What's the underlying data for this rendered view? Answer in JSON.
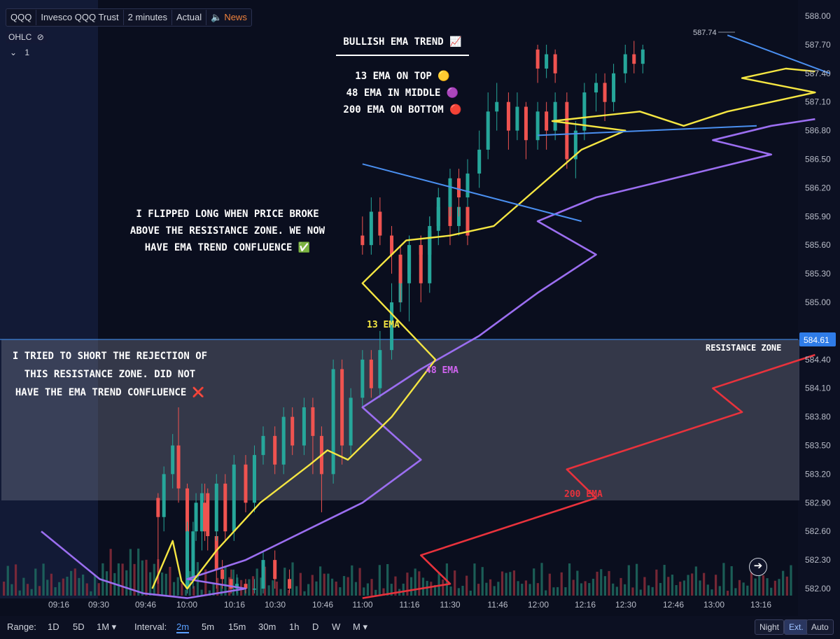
{
  "toolbar": {
    "symbol": "QQQ",
    "name": "Invesco QQQ Trust",
    "interval": "2 minutes",
    "mode": "Actual",
    "news": "News"
  },
  "legend": {
    "ohlc": "OHLC",
    "collapse": "1"
  },
  "price_axis": {
    "ticks": [
      "588.00",
      "587.70",
      "587.40",
      "587.10",
      "586.80",
      "586.50",
      "586.20",
      "585.90",
      "585.60",
      "585.30",
      "585.00",
      "584.70",
      "584.40",
      "584.10",
      "583.80",
      "583.50",
      "583.20",
      "582.90",
      "582.60",
      "582.30",
      "582.00"
    ],
    "current_price": "584.61",
    "high_marker": "587.74"
  },
  "time_axis": {
    "ticks": [
      "09:16",
      "09:30",
      "09:46",
      "10:00",
      "10:16",
      "10:30",
      "10:46",
      "11:00",
      "11:16",
      "11:30",
      "11:46",
      "12:00",
      "12:16",
      "12:30",
      "12:46",
      "13:00",
      "13:16"
    ]
  },
  "annotations": {
    "title": "BULLISH EMA TREND 📈",
    "line1": "13 EMA ON TOP 🟡",
    "line2": "48 EMA IN MIDDLE 🟣",
    "line3": "200 EMA ON BOTTOM 🔴",
    "long_note": [
      "I FLIPPED LONG WHEN PRICE BROKE",
      "ABOVE THE RESISTANCE ZONE. WE NOW",
      "HAVE EMA TREND CONFLUENCE ✅"
    ],
    "short_note": [
      "I TRIED TO SHORT THE REJECTION OF",
      "THIS RESISTANCE ZONE. DID NOT",
      "HAVE THE EMA TREND CONFLUENCE ❌"
    ],
    "ema13": "13 EMA",
    "ema48": "48 EMA",
    "ema200": "200 EMA",
    "zone": "RESISTANCE ZONE"
  },
  "bottom_bar": {
    "range_label": "Range:",
    "ranges": [
      "1D",
      "5D",
      "1M ▾"
    ],
    "interval_label": "Interval:",
    "intervals": [
      "2m",
      "5m",
      "15m",
      "30m",
      "1h",
      "D",
      "W",
      "M ▾"
    ],
    "night": "Night",
    "ext": "Ext.",
    "auto": "Auto"
  },
  "colors": {
    "up": "#26a69a",
    "down": "#ef5350",
    "ema13": "#f5e642",
    "ema48": "#9b6ef0",
    "ema200": "#e8323c",
    "trend_line": "#4a8ff0"
  },
  "chart_data": {
    "type": "candlestick",
    "ylim": [
      582.0,
      588.0
    ],
    "xlim": [
      "09:10",
      "13:28"
    ],
    "bar_interval_minutes": 2,
    "resistance_zone": [
      582.93,
      584.61
    ],
    "ema13": [
      [
        9.48,
        582.0
      ],
      [
        9.55,
        582.5
      ],
      [
        9.58,
        582.08
      ],
      [
        10.0,
        582.0
      ],
      [
        10.1,
        582.4
      ],
      [
        10.25,
        582.9
      ],
      [
        10.42,
        583.3
      ],
      [
        10.48,
        583.45
      ],
      [
        10.55,
        583.35
      ],
      [
        10.7,
        583.8
      ],
      [
        10.85,
        584.4
      ],
      [
        11.0,
        585.2
      ],
      [
        11.15,
        585.65
      ],
      [
        11.3,
        585.7
      ],
      [
        11.45,
        585.8
      ],
      [
        11.6,
        586.2
      ],
      [
        11.75,
        586.6
      ],
      [
        11.9,
        586.8
      ],
      [
        12.05,
        586.9
      ],
      [
        12.2,
        586.95
      ],
      [
        12.35,
        587.0
      ],
      [
        12.5,
        586.85
      ],
      [
        12.65,
        587.0
      ],
      [
        12.8,
        587.1
      ],
      [
        12.95,
        587.2
      ],
      [
        13.1,
        587.35
      ],
      [
        13.25,
        587.45
      ],
      [
        13.35,
        587.42
      ]
    ],
    "ema48": [
      [
        9.1,
        582.6
      ],
      [
        9.3,
        582.1
      ],
      [
        9.45,
        581.95
      ],
      [
        9.6,
        581.9
      ],
      [
        9.8,
        582.0
      ],
      [
        10.0,
        582.1
      ],
      [
        10.2,
        582.3
      ],
      [
        10.4,
        582.6
      ],
      [
        10.6,
        582.9
      ],
      [
        10.8,
        583.35
      ],
      [
        11.0,
        583.9
      ],
      [
        11.2,
        584.3
      ],
      [
        11.4,
        584.65
      ],
      [
        11.6,
        585.1
      ],
      [
        11.8,
        585.5
      ],
      [
        12.0,
        585.85
      ],
      [
        12.2,
        586.1
      ],
      [
        12.4,
        586.25
      ],
      [
        12.6,
        586.4
      ],
      [
        12.8,
        586.55
      ],
      [
        13.0,
        586.7
      ],
      [
        13.2,
        586.85
      ],
      [
        13.35,
        586.92
      ]
    ],
    "ema200": [
      [
        10.6,
        581.9
      ],
      [
        10.9,
        582.05
      ],
      [
        11.2,
        582.35
      ],
      [
        11.5,
        582.65
      ],
      [
        11.8,
        582.95
      ],
      [
        12.1,
        583.25
      ],
      [
        12.4,
        583.55
      ],
      [
        12.7,
        583.85
      ],
      [
        13.0,
        584.1
      ],
      [
        13.2,
        584.3
      ],
      [
        13.35,
        584.45
      ]
    ],
    "trend_lines": [
      [
        [
          11.0,
          586.45
        ],
        [
          11.75,
          585.85
        ]
      ],
      [
        [
          12.0,
          586.75
        ],
        [
          12.75,
          586.85
        ]
      ],
      [
        [
          13.05,
          587.8
        ],
        [
          13.4,
          587.4
        ]
      ]
    ],
    "candles": [
      [
        9.5,
        582.95,
        582.75,
        583.0,
        582.05
      ],
      [
        9.52,
        582.75,
        583.2,
        583.28,
        582.6
      ],
      [
        9.55,
        583.2,
        583.5,
        583.62,
        583.05
      ],
      [
        9.57,
        583.5,
        583.05,
        583.9,
        582.9
      ],
      [
        9.6,
        583.05,
        582.0,
        583.1,
        581.95
      ],
      [
        9.62,
        582.1,
        582.6,
        582.7,
        582.0
      ],
      [
        9.65,
        582.6,
        583.0,
        583.1,
        582.4
      ],
      [
        9.67,
        583.0,
        582.55,
        583.05,
        582.4
      ],
      [
        9.7,
        582.55,
        582.2,
        582.6,
        582.0
      ],
      [
        9.72,
        582.2,
        582.1,
        582.3,
        582.0
      ],
      [
        9.75,
        582.1,
        582.0,
        582.2,
        581.95
      ],
      [
        9.77,
        582.0,
        582.05,
        582.15,
        581.95
      ],
      [
        9.8,
        582.05,
        582.0,
        582.1,
        581.95
      ],
      [
        9.83,
        582.0,
        582.0,
        582.1,
        581.95
      ],
      [
        9.86,
        582.0,
        582.3,
        582.4,
        581.95
      ],
      [
        9.9,
        582.3,
        582.1,
        582.4,
        582.0
      ],
      [
        9.95,
        582.1,
        582.0,
        582.2,
        581.95
      ],
      [
        10.0,
        582.0,
        582.6,
        582.7,
        581.95
      ],
      [
        10.03,
        582.6,
        582.9,
        583.0,
        582.5
      ],
      [
        10.06,
        582.9,
        582.6,
        583.1,
        582.5
      ],
      [
        10.1,
        582.6,
        583.1,
        583.2,
        582.5
      ],
      [
        10.13,
        583.1,
        582.6,
        583.2,
        582.5
      ],
      [
        10.16,
        582.6,
        583.3,
        583.4,
        582.5
      ],
      [
        10.2,
        583.3,
        582.9,
        583.4,
        582.8
      ],
      [
        10.23,
        582.9,
        583.4,
        583.5,
        582.8
      ],
      [
        10.26,
        583.4,
        583.6,
        583.7,
        583.3
      ],
      [
        10.3,
        583.6,
        583.3,
        583.7,
        583.2
      ],
      [
        10.33,
        583.3,
        583.8,
        583.9,
        583.2
      ],
      [
        10.36,
        583.8,
        583.5,
        583.9,
        583.4
      ],
      [
        10.4,
        583.5,
        583.9,
        584.0,
        583.4
      ],
      [
        10.43,
        583.9,
        583.6,
        584.0,
        583.2
      ],
      [
        10.46,
        583.6,
        583.2,
        583.7,
        582.8
      ],
      [
        10.5,
        583.2,
        584.3,
        584.4,
        583.1
      ],
      [
        10.53,
        584.3,
        583.5,
        584.4,
        583.3
      ],
      [
        10.56,
        583.5,
        584.0,
        584.1,
        583.4
      ],
      [
        10.6,
        584.0,
        584.4,
        584.5,
        583.9
      ],
      [
        10.63,
        584.4,
        584.1,
        584.5,
        584.0
      ],
      [
        10.66,
        584.1,
        584.5,
        584.7,
        584.0
      ],
      [
        10.7,
        584.5,
        585.0,
        585.2,
        584.4
      ],
      [
        10.73,
        585.0,
        585.3,
        585.4,
        584.9
      ],
      [
        10.76,
        585.3,
        585.6,
        585.7,
        585.2
      ],
      [
        10.8,
        585.6,
        585.2,
        585.7,
        585.0
      ],
      [
        10.83,
        585.2,
        585.8,
        585.9,
        585.1
      ],
      [
        10.86,
        585.8,
        586.1,
        586.2,
        585.7
      ],
      [
        10.9,
        586.1,
        585.8,
        586.2,
        585.6
      ],
      [
        10.93,
        585.8,
        586.0,
        586.1,
        585.7
      ],
      [
        10.96,
        586.0,
        585.7,
        586.1,
        585.6
      ],
      [
        11.0,
        585.7,
        585.6,
        585.9,
        585.5
      ],
      [
        11.03,
        585.6,
        585.95,
        586.1,
        585.5
      ],
      [
        11.06,
        585.95,
        585.7,
        586.1,
        585.6
      ],
      [
        11.1,
        585.7,
        585.5,
        585.8,
        585.3
      ],
      [
        11.13,
        585.5,
        585.2,
        585.6,
        585.0
      ],
      [
        11.16,
        585.2,
        585.6,
        585.7,
        584.8
      ],
      [
        11.2,
        585.6,
        585.5,
        585.7,
        585.3
      ],
      [
        11.23,
        585.5,
        585.75,
        585.9,
        585.4
      ],
      [
        11.26,
        585.75,
        586.0,
        586.1,
        585.6
      ],
      [
        11.3,
        586.0,
        586.3,
        586.4,
        585.9
      ],
      [
        11.33,
        586.3,
        586.1,
        586.4,
        585.9
      ],
      [
        11.36,
        586.1,
        586.35,
        586.5,
        586.0
      ],
      [
        11.4,
        586.35,
        586.6,
        586.8,
        586.2
      ],
      [
        11.43,
        586.6,
        587.0,
        587.2,
        586.5
      ],
      [
        11.46,
        587.0,
        587.1,
        587.3,
        586.8
      ],
      [
        11.5,
        587.1,
        586.8,
        587.2,
        586.6
      ],
      [
        11.53,
        586.8,
        587.05,
        587.2,
        586.7
      ],
      [
        11.56,
        587.05,
        586.7,
        587.1,
        586.5
      ],
      [
        11.6,
        586.7,
        587.0,
        587.1,
        586.6
      ],
      [
        11.63,
        587.0,
        586.8,
        587.1,
        586.6
      ],
      [
        11.66,
        586.8,
        587.1,
        587.2,
        586.7
      ],
      [
        11.7,
        587.1,
        586.5,
        587.2,
        586.4
      ],
      [
        11.73,
        586.5,
        586.8,
        586.9,
        586.3
      ],
      [
        11.76,
        586.8,
        587.2,
        587.3,
        586.7
      ],
      [
        11.8,
        587.2,
        587.3,
        587.4,
        587.0
      ],
      [
        11.83,
        587.3,
        587.1,
        587.4,
        586.9
      ],
      [
        11.86,
        587.1,
        587.4,
        587.5,
        587.0
      ],
      [
        11.9,
        587.4,
        587.6,
        587.7,
        587.3
      ],
      [
        11.93,
        587.6,
        587.5,
        587.74,
        587.4
      ],
      [
        11.96,
        587.5,
        587.65,
        587.7,
        587.4
      ],
      [
        12.0,
        587.65,
        587.45,
        587.7,
        587.3
      ],
      [
        12.03,
        587.45,
        587.6,
        587.7,
        587.35
      ],
      [
        12.06,
        587.6,
        587.4,
        587.65,
        587.3
      ]
    ]
  }
}
